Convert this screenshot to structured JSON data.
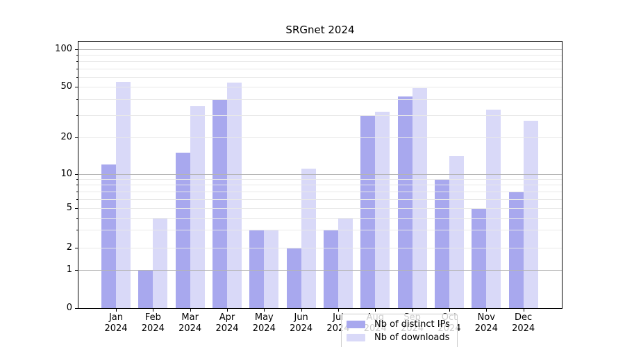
{
  "chart_data": {
    "type": "bar",
    "title": "SRGnet 2024",
    "categories": [
      "Jan",
      "Feb",
      "Mar",
      "Apr",
      "May",
      "Jun",
      "Jul",
      "Aug",
      "Sep",
      "Oct",
      "Nov",
      "Dec"
    ],
    "category_year": "2024",
    "series": [
      {
        "name": "Nb of distinct IPs",
        "color": "#a8a8ee",
        "values": [
          12,
          1,
          15,
          40,
          3,
          2,
          3,
          30,
          42,
          9,
          5,
          7
        ]
      },
      {
        "name": "Nb of downloads",
        "color": "#d9d9f8",
        "values": [
          55,
          4,
          35,
          54,
          3,
          11,
          4,
          32,
          49,
          14,
          33,
          27
        ]
      }
    ],
    "yscale": "symlog",
    "ylim": [
      0,
      115
    ],
    "ytick_labels": [
      "100",
      "50",
      "20",
      "10",
      "5",
      "2",
      "1",
      "0"
    ],
    "grid": true,
    "legend_position": "lower center",
    "colors": {
      "axis": "#000000",
      "grid_minor": "#e8e8e8",
      "grid_major": "#b4b4b4",
      "legend_border": "#cccccc"
    }
  }
}
